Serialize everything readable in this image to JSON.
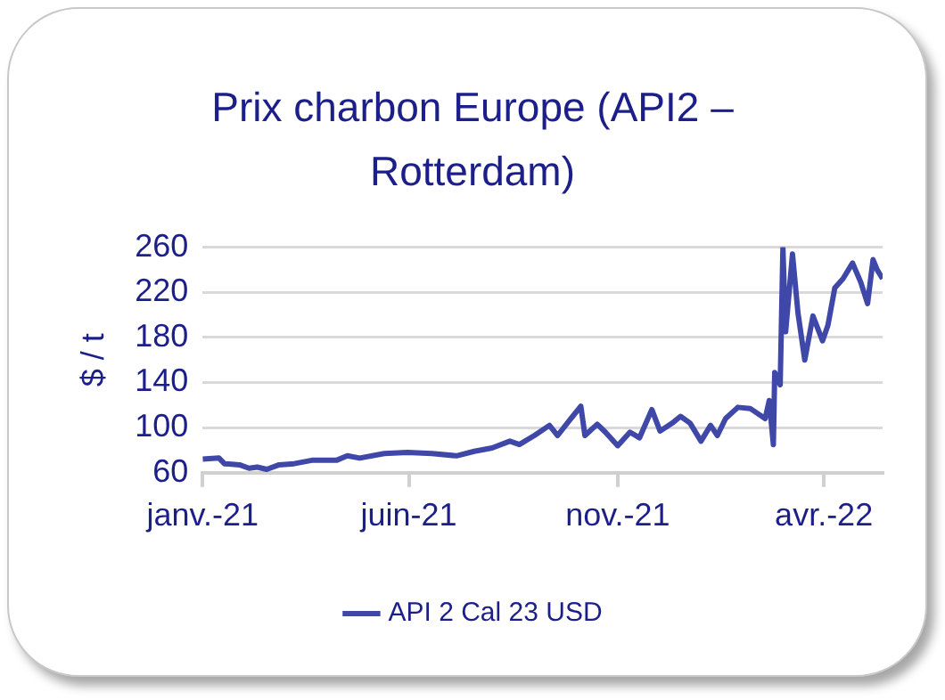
{
  "chart_data": {
    "type": "line",
    "title": "Prix charbon Europe (API2 – Rotterdam)",
    "ylabel": "$ / t",
    "x": [
      "2021-01-01",
      "2021-01-13",
      "2021-01-17",
      "2021-01-28",
      "2021-02-04",
      "2021-02-10",
      "2021-02-17",
      "2021-02-26",
      "2021-03-09",
      "2021-03-22",
      "2021-04-09",
      "2021-04-17",
      "2021-04-26",
      "2021-05-14",
      "2021-05-31",
      "2021-06-18",
      "2021-07-06",
      "2021-07-19",
      "2021-08-01",
      "2021-08-14",
      "2021-08-21",
      "2021-09-01",
      "2021-09-12",
      "2021-09-18",
      "2021-09-27",
      "2021-10-05",
      "2021-10-08",
      "2021-10-17",
      "2021-10-23",
      "2021-11-01",
      "2021-11-10",
      "2021-11-17",
      "2021-11-26",
      "2021-12-02",
      "2021-12-11",
      "2021-12-17",
      "2021-12-24",
      "2022-01-01",
      "2022-01-08",
      "2022-01-13",
      "2022-01-19",
      "2022-01-28",
      "2022-02-06",
      "2022-02-17",
      "2022-02-20",
      "2022-02-23",
      "2022-02-24",
      "2022-02-28",
      "2022-03-02",
      "2022-03-04",
      "2022-03-09",
      "2022-03-13",
      "2022-03-18",
      "2022-03-24",
      "2022-03-31",
      "2022-04-04",
      "2022-04-09",
      "2022-04-15",
      "2022-04-22",
      "2022-04-28",
      "2022-05-03",
      "2022-05-07",
      "2022-05-10",
      "2022-05-14"
    ],
    "series": [
      {
        "name": "API 2 Cal 23 USD",
        "color": "#3f48a8",
        "values": [
          72,
          73,
          68,
          67,
          64,
          65,
          63,
          67,
          68,
          71,
          71,
          75,
          73,
          77,
          78,
          77,
          75,
          79,
          82,
          88,
          85,
          93,
          102,
          93,
          107,
          119,
          93,
          103,
          96,
          84,
          96,
          91,
          116,
          97,
          104,
          110,
          104,
          88,
          102,
          93,
          108,
          118,
          117,
          108,
          124,
          85,
          149,
          138,
          259,
          185,
          254,
          202,
          160,
          199,
          177,
          191,
          224,
          232,
          246,
          229,
          210,
          249,
          240,
          232
        ]
      }
    ],
    "xlim": [
      "2021-01-01",
      "2022-05-14"
    ],
    "xticks": [
      {
        "value": "2021-01-01",
        "label": "janv.-21"
      },
      {
        "value": "2021-06-01",
        "label": "juin-21"
      },
      {
        "value": "2021-11-01",
        "label": "nov.-21"
      },
      {
        "value": "2022-04-01",
        "label": "avr.-22"
      }
    ],
    "ylim": [
      60,
      260
    ],
    "yticks": [
      60,
      100,
      140,
      180,
      220,
      260
    ],
    "grid": "y",
    "legend": "bottom",
    "marker": "none",
    "line_style": "solid"
  }
}
